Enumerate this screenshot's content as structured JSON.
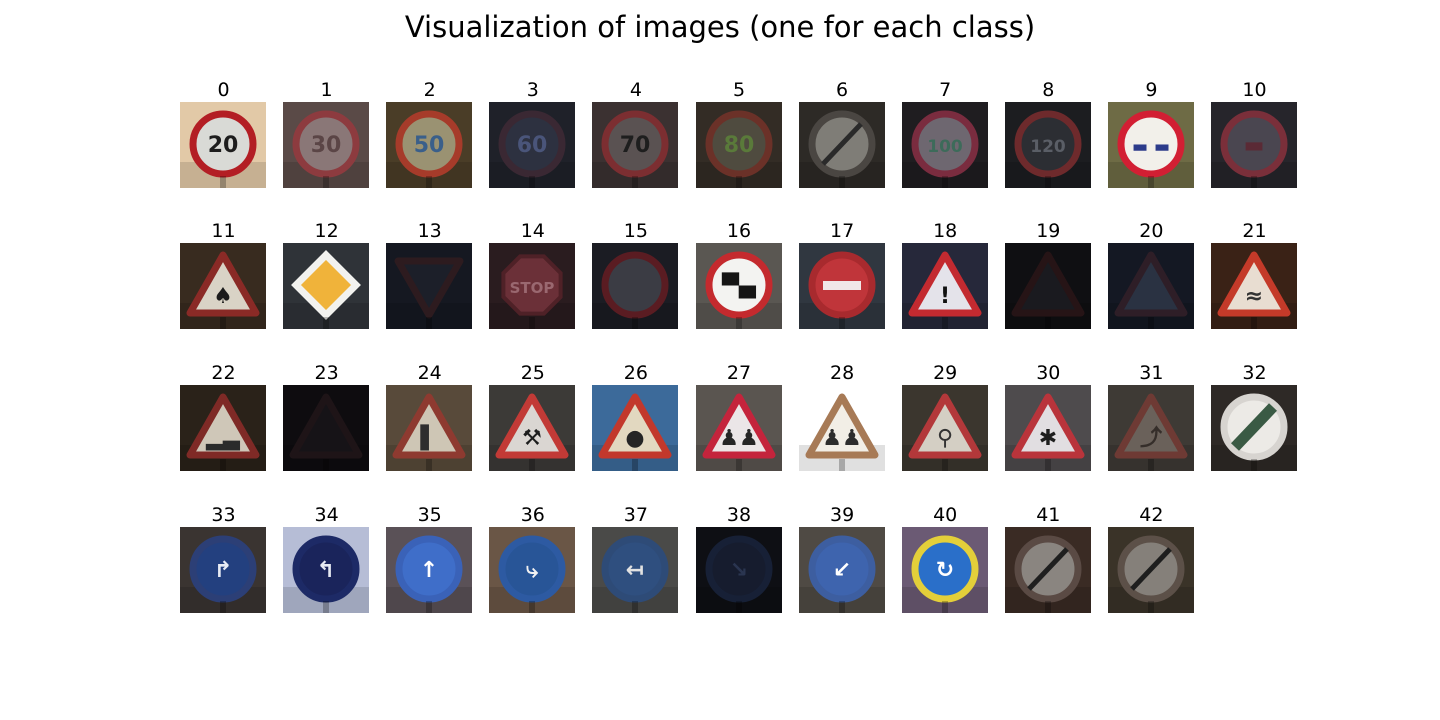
{
  "figure": {
    "title": "Visualization of images (one for each class)"
  },
  "images": [
    {
      "label": "0",
      "shape": "circle",
      "bg": "#e2c9a7",
      "fill": "#d9dad6",
      "border": "#b31e24",
      "symbol": "20",
      "symbolColor": "#1d1d1d"
    },
    {
      "label": "1",
      "shape": "circle",
      "bg": "#5a4a47",
      "fill": "#8a7777",
      "border": "#8d3b3f",
      "symbol": "30",
      "symbolColor": "#5b4546"
    },
    {
      "label": "2",
      "shape": "circle",
      "bg": "#4a3d27",
      "fill": "#9a9272",
      "border": "#a63b2a",
      "symbol": "50",
      "symbolColor": "#3a5f8a"
    },
    {
      "label": "3",
      "shape": "circle",
      "bg": "#1f2129",
      "fill": "#2d3140",
      "border": "#3a2833",
      "symbol": "60",
      "symbolColor": "#4a557a"
    },
    {
      "label": "4",
      "shape": "circle",
      "bg": "#3b3131",
      "fill": "#5a5252",
      "border": "#7c2e31",
      "symbol": "70",
      "symbolColor": "#1e1e1e"
    },
    {
      "label": "5",
      "shape": "circle",
      "bg": "#332c25",
      "fill": "#4f4b3f",
      "border": "#6b3128",
      "symbol": "80",
      "symbolColor": "#5a7a3a"
    },
    {
      "label": "6",
      "shape": "circle-slash",
      "bg": "#2d2a26",
      "fill": "#7f7d77",
      "border": "#4a4642",
      "symbol": "",
      "symbolColor": "#2a2a2a"
    },
    {
      "label": "7",
      "shape": "circle",
      "bg": "#1f1d20",
      "fill": "#6e6770",
      "border": "#7a2c3f",
      "symbol": "100",
      "symbolColor": "#3d6b5a"
    },
    {
      "label": "8",
      "shape": "circle",
      "bg": "#1c1d20",
      "fill": "#2c2e33",
      "border": "#6e2a2c",
      "symbol": "120",
      "symbolColor": "#5a5e66"
    },
    {
      "label": "9",
      "shape": "circle",
      "bg": "#6e6b45",
      "fill": "#f2f0ea",
      "border": "#d21f33",
      "symbol": "▬ ▬",
      "symbolColor": "#2c3b8a"
    },
    {
      "label": "10",
      "shape": "circle",
      "bg": "#26252b",
      "fill": "#4a4650",
      "border": "#7a2f3a",
      "symbol": "▬",
      "symbolColor": "#5a2a35"
    },
    {
      "label": "11",
      "shape": "triangle",
      "bg": "#382b1f",
      "fill": "#d9d3c6",
      "border": "#8a2a26",
      "symbol": "♠",
      "symbolColor": "#1b1b1b"
    },
    {
      "label": "12",
      "shape": "diamond",
      "bg": "#2f3338",
      "fill": "#f0b33a",
      "border": "#f2f2ef",
      "symbol": "",
      "symbolColor": "#ffffff"
    },
    {
      "label": "13",
      "shape": "inv-triangle",
      "bg": "#151821",
      "fill": "#1c1f29",
      "border": "#2d1b1f",
      "symbol": "",
      "symbolColor": "#000000"
    },
    {
      "label": "14",
      "shape": "octagon",
      "bg": "#2a1c1f",
      "fill": "#6b3038",
      "border": "#4f2127",
      "symbol": "STOP",
      "symbolColor": "#9a6870"
    },
    {
      "label": "15",
      "shape": "circle",
      "bg": "#1b1c23",
      "fill": "#3b3c44",
      "border": "#5a1c22",
      "symbol": "",
      "symbolColor": "#000000"
    },
    {
      "label": "16",
      "shape": "circle",
      "bg": "#5a5752",
      "fill": "#f3f3f1",
      "border": "#c42a2e",
      "symbol": "▀▄",
      "symbolColor": "#151515"
    },
    {
      "label": "17",
      "shape": "no-entry",
      "bg": "#303740",
      "fill": "#c0353a",
      "border": "#a82a2e",
      "symbol": "",
      "symbolColor": "#f1e8e8"
    },
    {
      "label": "18",
      "shape": "triangle",
      "bg": "#26283a",
      "fill": "#e4e3ea",
      "border": "#c32a30",
      "symbol": "!",
      "symbolColor": "#111111"
    },
    {
      "label": "19",
      "shape": "triangle",
      "bg": "#0f0f12",
      "fill": "#1a1a1f",
      "border": "#261416",
      "symbol": "",
      "symbolColor": "#000000"
    },
    {
      "label": "20",
      "shape": "triangle",
      "bg": "#141823",
      "fill": "#2a3242",
      "border": "#2e1e27",
      "symbol": "",
      "symbolColor": "#000000"
    },
    {
      "label": "21",
      "shape": "triangle",
      "bg": "#3a2216",
      "fill": "#e8ddd1",
      "border": "#c43a29",
      "symbol": "≈",
      "symbolColor": "#333333"
    },
    {
      "label": "22",
      "shape": "triangle",
      "bg": "#2a2219",
      "fill": "#cfc7b8",
      "border": "#7f2a26",
      "symbol": "▂▃",
      "symbolColor": "#2b2b2b"
    },
    {
      "label": "23",
      "shape": "triangle",
      "bg": "#0e0c0f",
      "fill": "#161317",
      "border": "#1e1417",
      "symbol": "",
      "symbolColor": "#000000"
    },
    {
      "label": "24",
      "shape": "triangle",
      "bg": "#584a3a",
      "fill": "#cec6b5",
      "border": "#8e3a30",
      "symbol": "▌",
      "symbolColor": "#2e2e2e"
    },
    {
      "label": "25",
      "shape": "triangle",
      "bg": "#3c3a37",
      "fill": "#dad6d2",
      "border": "#c23a36",
      "symbol": "⚒",
      "symbolColor": "#1d1d1d"
    },
    {
      "label": "26",
      "shape": "triangle",
      "bg": "#3c6a9a",
      "fill": "#e2d8c0",
      "border": "#c2382c",
      "symbol": "●",
      "symbolColor": "#252525"
    },
    {
      "label": "27",
      "shape": "triangle",
      "bg": "#5a5550",
      "fill": "#ebe6e7",
      "border": "#c4243c",
      "symbol": "♟♟",
      "symbolColor": "#262626"
    },
    {
      "label": "28",
      "shape": "triangle",
      "bg": "#ffffff",
      "fill": "#f2eee6",
      "border": "#a77a56",
      "symbol": "♟♟",
      "symbolColor": "#2d2d2d"
    },
    {
      "label": "29",
      "shape": "triangle",
      "bg": "#3b362e",
      "fill": "#d4cfc4",
      "border": "#b3383a",
      "symbol": "⚲",
      "symbolColor": "#333333"
    },
    {
      "label": "30",
      "shape": "triangle",
      "bg": "#4e4b4d",
      "fill": "#e1dee1",
      "border": "#b9343b",
      "symbol": "✱",
      "symbolColor": "#1e1e1e"
    },
    {
      "label": "31",
      "shape": "triangle",
      "bg": "#3e3a35",
      "fill": "#6a615a",
      "border": "#6e3a34",
      "symbol": "⤴",
      "symbolColor": "#352e2a"
    },
    {
      "label": "32",
      "shape": "circle-stripe",
      "bg": "#2e2926",
      "fill": "#eceae6",
      "border": "#d7d4d0",
      "symbol": "",
      "symbolColor": "#3a5a44"
    },
    {
      "label": "33",
      "shape": "circle",
      "bg": "#3a3431",
      "fill": "#23407f",
      "border": "#2c3f76",
      "symbol": "↱",
      "symbolColor": "#e8ecf4"
    },
    {
      "label": "34",
      "shape": "circle",
      "bg": "#b6bdd6",
      "fill": "#1a245b",
      "border": "#1d2a66",
      "symbol": "↰",
      "symbolColor": "#e6e9f2"
    },
    {
      "label": "35",
      "shape": "circle",
      "bg": "#5a5157",
      "fill": "#3f6ec9",
      "border": "#3a62b8",
      "symbol": "↑",
      "symbolColor": "#ffffff"
    },
    {
      "label": "36",
      "shape": "circle",
      "bg": "#6a5646",
      "fill": "#285597",
      "border": "#2d5aa2",
      "symbol": "⤷",
      "symbolColor": "#f2f2f2"
    },
    {
      "label": "37",
      "shape": "circle",
      "bg": "#4a4a48",
      "fill": "#2f4f7f",
      "border": "#2e4b77",
      "symbol": "↤",
      "symbolColor": "#e2e2e2"
    },
    {
      "label": "38",
      "shape": "circle",
      "bg": "#0e0f14",
      "fill": "#161c2e",
      "border": "#172036",
      "symbol": "↘",
      "symbolColor": "#2a3550"
    },
    {
      "label": "39",
      "shape": "circle",
      "bg": "#4f4a44",
      "fill": "#3e64ae",
      "border": "#3d5ea0",
      "symbol": "↙",
      "symbolColor": "#ffffff"
    },
    {
      "label": "40",
      "shape": "circle",
      "bg": "#6b5a74",
      "fill": "#2a6fc9",
      "border": "#e3cf3a",
      "symbol": "↻",
      "symbolColor": "#ffffff"
    },
    {
      "label": "41",
      "shape": "circle-slash",
      "bg": "#3a2b24",
      "fill": "#8a8580",
      "border": "#5a4a44",
      "symbol": "",
      "symbolColor": "#1f1f1f"
    },
    {
      "label": "42",
      "shape": "circle-slash",
      "bg": "#3a3328",
      "fill": "#85807a",
      "border": "#5c5048",
      "symbol": "",
      "symbolColor": "#1e1e1e"
    }
  ]
}
